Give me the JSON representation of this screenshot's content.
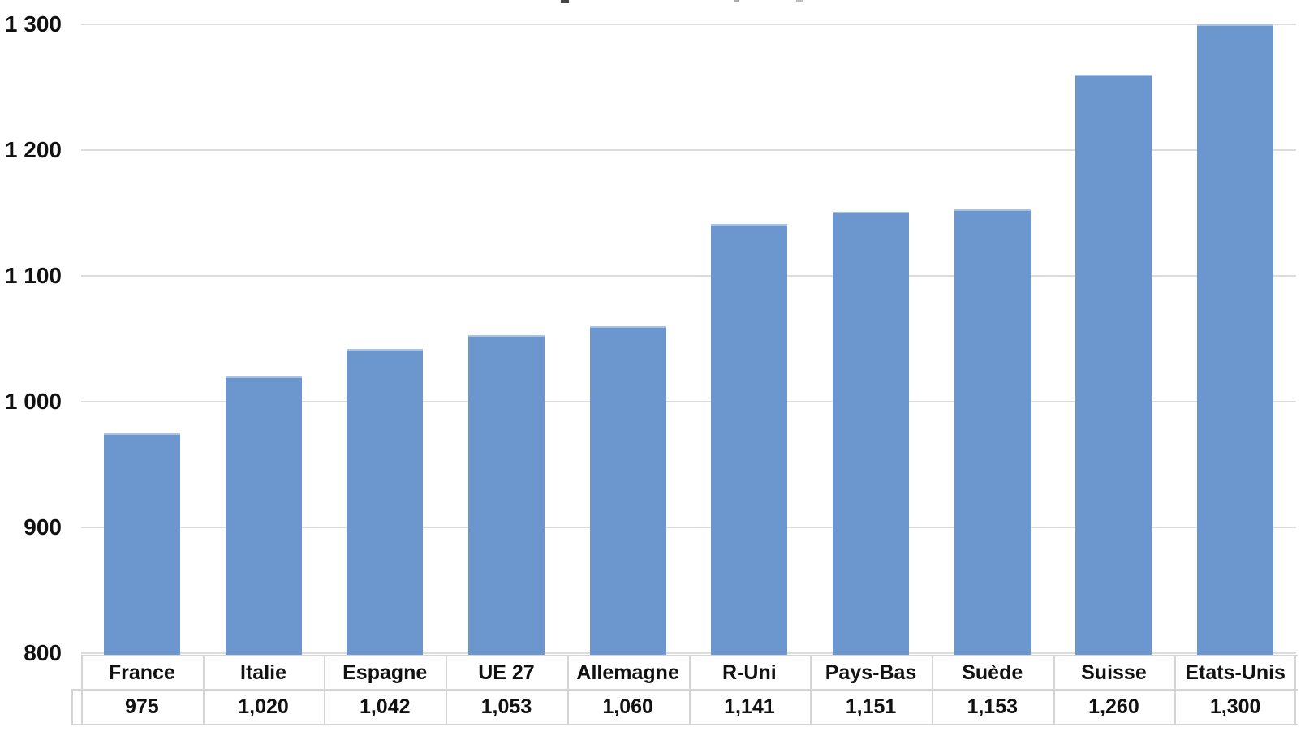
{
  "chart_data": {
    "type": "bar",
    "title": "",
    "xlabel": "",
    "ylabel": "",
    "categories": [
      "France",
      "Italie",
      "Espagne",
      "UE 27",
      "Allemagne",
      "R-Uni",
      "Pays-Bas",
      "Suède",
      "Suisse",
      "Etats-Unis"
    ],
    "values": [
      975,
      1020,
      1042,
      1053,
      1060,
      1141,
      1151,
      1153,
      1260,
      1300
    ],
    "value_labels": [
      "975",
      "1,020",
      "1,042",
      "1,053",
      "1,060",
      "1,141",
      "1,151",
      "1,153",
      "1,260",
      "1,300"
    ],
    "ylim": [
      800,
      1300
    ],
    "yticks": [
      800,
      900,
      1000,
      1100,
      1200,
      1300
    ],
    "ytick_labels": [
      "800",
      "900",
      "1 000",
      "1 100",
      "1 200",
      "1 300"
    ],
    "grid": "horizontal",
    "legend": "none",
    "data_table_shown": true,
    "colors": {
      "bar": "#6B97CE",
      "bar_top_edge": "#A9C3E2",
      "gridline": "#DCDCDC",
      "table_border": "#D5D5D5",
      "text": "#111111",
      "background": "#FFFFFF"
    }
  }
}
